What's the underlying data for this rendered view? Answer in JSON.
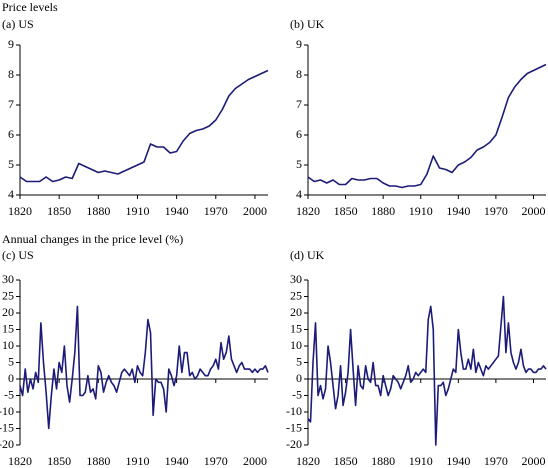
{
  "section_titles": [
    "Price levels",
    "Annual changes in the price level (%)"
  ],
  "chart_data": [
    {
      "type": "line",
      "title": "(a) US",
      "x": [
        1820,
        1825,
        1830,
        1835,
        1840,
        1845,
        1850,
        1855,
        1860,
        1865,
        1870,
        1875,
        1880,
        1885,
        1890,
        1895,
        1900,
        1905,
        1910,
        1915,
        1920,
        1925,
        1930,
        1935,
        1940,
        1945,
        1950,
        1955,
        1960,
        1965,
        1970,
        1975,
        1980,
        1985,
        1990,
        1995,
        2000,
        2005,
        2010
      ],
      "series": [
        {
          "color": "#1c1c78",
          "values": [
            4.6,
            4.45,
            4.45,
            4.45,
            4.6,
            4.45,
            4.5,
            4.6,
            4.55,
            5.05,
            4.95,
            4.85,
            4.75,
            4.8,
            4.75,
            4.7,
            4.8,
            4.9,
            5.0,
            5.1,
            5.7,
            5.6,
            5.6,
            5.4,
            5.45,
            5.8,
            6.05,
            6.15,
            6.2,
            6.3,
            6.5,
            6.85,
            7.3,
            7.55,
            7.7,
            7.85,
            7.95,
            8.05,
            8.15
          ]
        }
      ],
      "xlim": [
        1820,
        2010
      ],
      "ylim": [
        4,
        9
      ],
      "xticks": [
        1820,
        1850,
        1880,
        1910,
        1940,
        1970,
        2000
      ],
      "yticks": [
        4,
        5,
        6,
        7,
        8,
        9
      ]
    },
    {
      "type": "line",
      "title": "(b) UK",
      "x": [
        1820,
        1825,
        1830,
        1835,
        1840,
        1845,
        1850,
        1855,
        1860,
        1865,
        1870,
        1875,
        1880,
        1885,
        1890,
        1895,
        1900,
        1905,
        1910,
        1915,
        1920,
        1925,
        1930,
        1935,
        1940,
        1945,
        1950,
        1955,
        1960,
        1965,
        1970,
        1975,
        1980,
        1985,
        1990,
        1995,
        2000,
        2005,
        2010
      ],
      "series": [
        {
          "color": "#1c1c78",
          "values": [
            4.6,
            4.45,
            4.5,
            4.4,
            4.5,
            4.35,
            4.35,
            4.55,
            4.5,
            4.5,
            4.55,
            4.55,
            4.4,
            4.3,
            4.3,
            4.25,
            4.3,
            4.3,
            4.35,
            4.7,
            5.3,
            4.9,
            4.85,
            4.75,
            5.0,
            5.1,
            5.25,
            5.5,
            5.6,
            5.75,
            6.0,
            6.6,
            7.25,
            7.6,
            7.85,
            8.05,
            8.15,
            8.25,
            8.35
          ]
        }
      ],
      "xlim": [
        1820,
        2010
      ],
      "ylim": [
        4,
        9
      ],
      "xticks": [
        1820,
        1850,
        1880,
        1910,
        1940,
        1970,
        2000
      ],
      "yticks": [
        4,
        5,
        6,
        7,
        8,
        9
      ]
    },
    {
      "type": "line",
      "title": "(c) US",
      "x": [
        1820,
        1822,
        1824,
        1826,
        1828,
        1830,
        1832,
        1834,
        1836,
        1838,
        1840,
        1842,
        1844,
        1846,
        1848,
        1850,
        1852,
        1854,
        1856,
        1858,
        1860,
        1862,
        1864,
        1866,
        1868,
        1870,
        1872,
        1874,
        1876,
        1878,
        1880,
        1882,
        1884,
        1886,
        1888,
        1890,
        1892,
        1894,
        1896,
        1898,
        1900,
        1902,
        1904,
        1906,
        1908,
        1910,
        1912,
        1914,
        1916,
        1918,
        1920,
        1922,
        1924,
        1926,
        1928,
        1930,
        1932,
        1934,
        1936,
        1938,
        1940,
        1942,
        1944,
        1946,
        1948,
        1950,
        1952,
        1954,
        1956,
        1958,
        1960,
        1962,
        1964,
        1966,
        1968,
        1970,
        1972,
        1974,
        1976,
        1978,
        1980,
        1982,
        1984,
        1986,
        1988,
        1990,
        1992,
        1994,
        1996,
        1998,
        2000,
        2002,
        2004,
        2006,
        2008,
        2010
      ],
      "series": [
        {
          "color": "#1c1c78",
          "values": [
            -2,
            -5,
            3,
            -4,
            0,
            -3,
            2,
            -1,
            17,
            5,
            -4,
            -15,
            -5,
            3,
            -3,
            5,
            2,
            10,
            -2,
            -7,
            0,
            8,
            22,
            -5,
            -5,
            -4,
            1,
            -4,
            -3,
            -6,
            4,
            2,
            -4,
            -1,
            1,
            -1,
            -2,
            -4,
            -1,
            2,
            3,
            2,
            1,
            3,
            -1,
            4,
            2,
            1,
            8,
            18,
            14,
            -11,
            0,
            -1,
            -1,
            -3,
            -10,
            3,
            1,
            -2,
            1,
            10,
            2,
            8,
            8,
            1,
            2,
            0,
            1,
            3,
            2,
            1,
            1,
            3,
            4,
            6,
            3,
            11,
            6,
            8,
            13,
            6,
            4,
            2,
            4,
            5,
            3,
            3,
            3,
            2,
            3,
            2,
            3,
            3,
            4,
            2
          ]
        }
      ],
      "xlim": [
        1820,
        2010
      ],
      "ylim": [
        -20,
        30
      ],
      "xticks": [
        1820,
        1850,
        1880,
        1910,
        1940,
        1970,
        2000
      ],
      "yticks": [
        -20,
        -15,
        -10,
        -5,
        0,
        5,
        10,
        15,
        20,
        25,
        30
      ]
    },
    {
      "type": "line",
      "title": "(d) UK",
      "x": [
        1820,
        1822,
        1824,
        1826,
        1828,
        1830,
        1832,
        1834,
        1836,
        1838,
        1840,
        1842,
        1844,
        1846,
        1848,
        1850,
        1852,
        1854,
        1856,
        1858,
        1860,
        1862,
        1864,
        1866,
        1868,
        1870,
        1872,
        1874,
        1876,
        1878,
        1880,
        1882,
        1884,
        1886,
        1888,
        1890,
        1892,
        1894,
        1896,
        1898,
        1900,
        1902,
        1904,
        1906,
        1908,
        1910,
        1912,
        1914,
        1916,
        1918,
        1920,
        1922,
        1924,
        1926,
        1928,
        1930,
        1932,
        1934,
        1936,
        1938,
        1940,
        1942,
        1944,
        1946,
        1948,
        1950,
        1952,
        1954,
        1956,
        1958,
        1960,
        1962,
        1964,
        1966,
        1968,
        1970,
        1972,
        1974,
        1976,
        1978,
        1980,
        1982,
        1984,
        1986,
        1988,
        1990,
        1992,
        1994,
        1996,
        1998,
        2000,
        2002,
        2004,
        2006,
        2008,
        2010
      ],
      "series": [
        {
          "color": "#1c1c78",
          "values": [
            -12,
            -13,
            5,
            17,
            -5,
            -2,
            -6,
            -3,
            10,
            5,
            -2,
            -9,
            -5,
            4,
            -8,
            -4,
            2,
            15,
            3,
            -8,
            4,
            -2,
            -3,
            4,
            0,
            -1,
            5,
            -2,
            -2,
            -5,
            1,
            -2,
            -5,
            -3,
            1,
            0,
            -1,
            -3,
            -1,
            1,
            4,
            -1,
            0,
            2,
            1,
            2,
            3,
            2,
            18,
            22,
            15,
            -20,
            -2,
            -2,
            -1,
            -5,
            -3,
            0,
            3,
            2,
            15,
            8,
            3,
            3,
            6,
            3,
            9,
            2,
            5,
            3,
            1,
            4,
            3,
            4,
            5,
            6,
            7,
            16,
            25,
            8,
            17,
            8,
            5,
            3,
            5,
            9,
            4,
            2,
            3,
            3,
            2,
            2,
            3,
            3,
            4,
            3
          ]
        }
      ],
      "xlim": [
        1820,
        2010
      ],
      "ylim": [
        -20,
        30
      ],
      "xticks": [
        1820,
        1850,
        1880,
        1910,
        1940,
        1970,
        2000
      ],
      "yticks": [
        -20,
        -15,
        -10,
        -5,
        0,
        5,
        10,
        15,
        20,
        25,
        30
      ]
    }
  ]
}
